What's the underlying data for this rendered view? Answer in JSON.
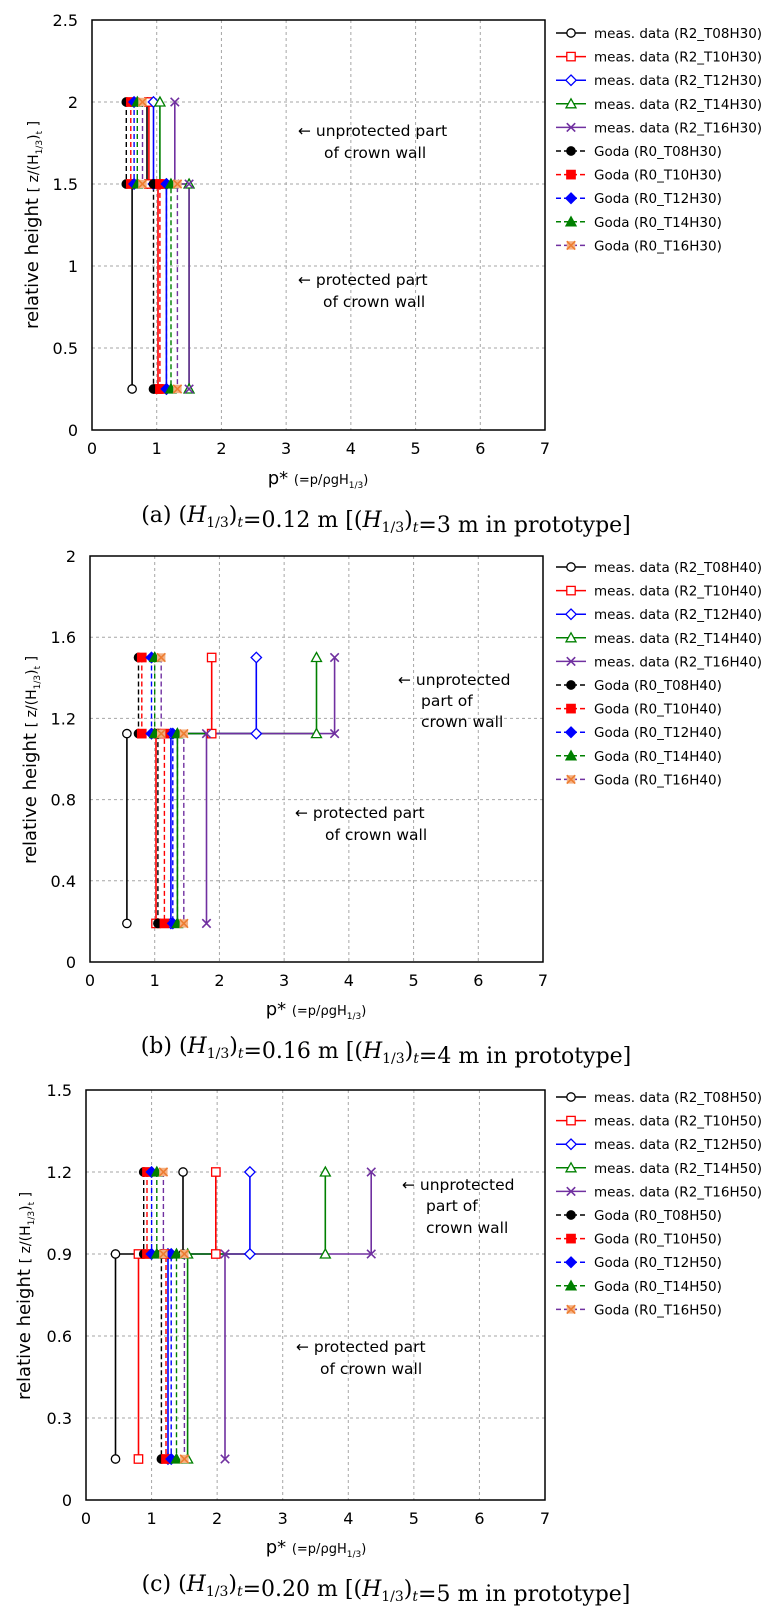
{
  "chart_data": [
    {
      "type": "line",
      "caption": "(a) (H1/3)t=0.12 m [(H1/3)t=3 m in prototype]",
      "xlabel": "p* (=p/ρgH1/3)",
      "ylabel": "relative height [ z/(H1/3)t ]",
      "xlim": [
        0,
        7
      ],
      "ylim": [
        0,
        2.5
      ],
      "xticks": [
        "0",
        "1",
        "2",
        "3",
        "4",
        "5",
        "6",
        "7"
      ],
      "yticks": [
        "0",
        "0.5",
        "1",
        "1.5",
        "2",
        "2.5"
      ],
      "grid": true,
      "legend_position": "right",
      "annotations": [
        "← unprotected part",
        "of crown wall",
        "← protected part",
        "of crown wall"
      ],
      "series": [
        {
          "name": "meas. data (R2_T08H30)",
          "color": "#000000",
          "marker": "circle-open",
          "dash": false,
          "points": [
            [
              0.85,
              2.0
            ],
            [
              0.85,
              1.5
            ],
            [
              0.62,
              1.5
            ],
            [
              0.62,
              0.25
            ]
          ]
        },
        {
          "name": "meas. data (R2_T10H30)",
          "color": "#ff0000",
          "marker": "square-open",
          "dash": false,
          "points": [
            [
              0.88,
              2.0
            ],
            [
              0.88,
              1.5
            ],
            [
              1.02,
              1.5
            ],
            [
              1.02,
              0.25
            ]
          ]
        },
        {
          "name": "meas. data (R2_T12H30)",
          "color": "#0000ff",
          "marker": "diamond-open",
          "dash": false,
          "points": [
            [
              0.95,
              2.0
            ],
            [
              0.95,
              1.5
            ],
            [
              1.15,
              1.5
            ],
            [
              1.15,
              0.25
            ]
          ]
        },
        {
          "name": "meas. data (R2_T14H30)",
          "color": "#008000",
          "marker": "triangle-open",
          "dash": false,
          "points": [
            [
              1.05,
              2.0
            ],
            [
              1.05,
              1.5
            ],
            [
              1.5,
              1.5
            ],
            [
              1.5,
              0.25
            ]
          ]
        },
        {
          "name": "meas. data (R2_T16H30)",
          "color": "#7030a0",
          "marker": "x",
          "dash": false,
          "points": [
            [
              1.28,
              2.0
            ],
            [
              1.28,
              1.5
            ],
            [
              1.5,
              1.5
            ],
            [
              1.5,
              0.25
            ]
          ]
        },
        {
          "name": "Goda (R0_T08H30)",
          "color": "#000000",
          "marker": "circle-filled",
          "dash": true,
          "points": [
            [
              0.53,
              2.0
            ],
            [
              0.53,
              1.5
            ],
            [
              0.95,
              1.5
            ],
            [
              0.95,
              0.25
            ]
          ]
        },
        {
          "name": "Goda (R0_T10H30)",
          "color": "#ff0000",
          "marker": "square-filled",
          "dash": true,
          "points": [
            [
              0.6,
              2.0
            ],
            [
              0.6,
              1.5
            ],
            [
              1.05,
              1.5
            ],
            [
              1.05,
              0.25
            ]
          ]
        },
        {
          "name": "Goda (R0_T12H30)",
          "color": "#0000ff",
          "marker": "diamond-filled",
          "dash": true,
          "points": [
            [
              0.65,
              2.0
            ],
            [
              0.65,
              1.5
            ],
            [
              1.15,
              1.5
            ],
            [
              1.15,
              0.25
            ]
          ]
        },
        {
          "name": "Goda (R0_T14H30)",
          "color": "#008000",
          "marker": "triangle-filled",
          "dash": true,
          "points": [
            [
              0.7,
              2.0
            ],
            [
              0.7,
              1.5
            ],
            [
              1.22,
              1.5
            ],
            [
              1.22,
              0.25
            ]
          ]
        },
        {
          "name": "Goda (R0_T16H30)",
          "color": "#7030a0",
          "marker": "x-orange",
          "dash": true,
          "points": [
            [
              0.78,
              2.0
            ],
            [
              0.78,
              1.5
            ],
            [
              1.32,
              1.5
            ],
            [
              1.32,
              0.25
            ]
          ]
        }
      ]
    },
    {
      "type": "line",
      "caption": "(b) (H1/3)t=0.16 m [(H1/3)t=4 m in prototype]",
      "xlabel": "p* (=p/ρgH1/3)",
      "ylabel": "relative height [ z/(H1/3)t ]",
      "xlim": [
        0,
        7
      ],
      "ylim": [
        0,
        2
      ],
      "xticks": [
        "0",
        "1",
        "2",
        "3",
        "4",
        "5",
        "6",
        "7"
      ],
      "yticks": [
        "0",
        "0.4",
        "0.8",
        "1.2",
        "1.6",
        "2"
      ],
      "grid": true,
      "legend_position": "right",
      "annotations": [
        "← unprotected",
        "part of",
        "crown wall",
        "← protected part",
        "of crown wall"
      ],
      "series": [
        {
          "name": "meas. data (R2_T08H40)",
          "color": "#000000",
          "marker": "circle-open",
          "dash": false,
          "points": [
            [
              0.57,
              1.125
            ],
            [
              0.57,
              0.19
            ]
          ]
        },
        {
          "name": "meas. data (R2_T10H40)",
          "color": "#ff0000",
          "marker": "square-open",
          "dash": false,
          "points": [
            [
              1.88,
              1.5
            ],
            [
              1.88,
              1.125
            ],
            [
              1.02,
              1.125
            ],
            [
              1.02,
              0.19
            ]
          ]
        },
        {
          "name": "meas. data (R2_T12H40)",
          "color": "#0000ff",
          "marker": "diamond-open",
          "dash": false,
          "points": [
            [
              2.57,
              1.5
            ],
            [
              2.57,
              1.125
            ],
            [
              1.25,
              1.125
            ],
            [
              1.25,
              0.19
            ]
          ]
        },
        {
          "name": "meas. data (R2_T14H40)",
          "color": "#008000",
          "marker": "triangle-open",
          "dash": false,
          "points": [
            [
              3.5,
              1.5
            ],
            [
              3.5,
              1.125
            ],
            [
              1.35,
              1.125
            ],
            [
              1.35,
              0.19
            ]
          ]
        },
        {
          "name": "meas. data (R2_T16H40)",
          "color": "#7030a0",
          "marker": "x",
          "dash": false,
          "points": [
            [
              3.78,
              1.5
            ],
            [
              3.78,
              1.125
            ],
            [
              1.8,
              1.125
            ],
            [
              1.8,
              0.19
            ]
          ]
        },
        {
          "name": "Goda (R0_T08H40)",
          "color": "#000000",
          "marker": "circle-filled",
          "dash": true,
          "points": [
            [
              0.75,
              1.5
            ],
            [
              0.75,
              1.125
            ],
            [
              1.05,
              1.125
            ],
            [
              1.05,
              0.19
            ]
          ]
        },
        {
          "name": "Goda (R0_T10H40)",
          "color": "#ff0000",
          "marker": "square-filled",
          "dash": true,
          "points": [
            [
              0.8,
              1.5
            ],
            [
              0.8,
              1.125
            ],
            [
              1.15,
              1.125
            ],
            [
              1.15,
              0.19
            ]
          ]
        },
        {
          "name": "Goda (R0_T12H40)",
          "color": "#0000ff",
          "marker": "diamond-filled",
          "dash": true,
          "points": [
            [
              0.95,
              1.5
            ],
            [
              0.95,
              1.125
            ],
            [
              1.28,
              1.125
            ],
            [
              1.28,
              0.19
            ]
          ]
        },
        {
          "name": "Goda (R0_T14H40)",
          "color": "#008000",
          "marker": "triangle-filled",
          "dash": true,
          "points": [
            [
              1.0,
              1.5
            ],
            [
              1.0,
              1.125
            ],
            [
              1.35,
              1.125
            ],
            [
              1.35,
              0.19
            ]
          ]
        },
        {
          "name": "Goda (R0_T16H40)",
          "color": "#7030a0",
          "marker": "x-orange",
          "dash": true,
          "points": [
            [
              1.1,
              1.5
            ],
            [
              1.1,
              1.125
            ],
            [
              1.45,
              1.125
            ],
            [
              1.45,
              0.19
            ]
          ]
        }
      ]
    },
    {
      "type": "line",
      "caption": "(c) (H1/3)t=0.20 m [(H1/3)t=5 m in prototype]",
      "xlabel": "p* (=p/ρgH1/3)",
      "ylabel": "relative height [ z/(H1/3)t ]",
      "xlim": [
        0,
        7
      ],
      "ylim": [
        0,
        1.5
      ],
      "xticks": [
        "0",
        "1",
        "2",
        "3",
        "4",
        "5",
        "6",
        "7"
      ],
      "yticks": [
        "0",
        "0.3",
        "0.6",
        "0.9",
        "1.2",
        "1.5"
      ],
      "grid": true,
      "legend_position": "right",
      "annotations": [
        "← unprotected",
        "part of",
        "crown wall",
        "← protected part",
        "of crown wall"
      ],
      "series": [
        {
          "name": "meas. data (R2_T08H50)",
          "color": "#000000",
          "marker": "circle-open",
          "dash": false,
          "points": [
            [
              1.48,
              1.2
            ],
            [
              1.48,
              0.9
            ],
            [
              0.45,
              0.9
            ],
            [
              0.45,
              0.15
            ]
          ]
        },
        {
          "name": "meas. data (R2_T10H50)",
          "color": "#ff0000",
          "marker": "square-open",
          "dash": false,
          "points": [
            [
              1.98,
              1.2
            ],
            [
              1.98,
              0.9
            ],
            [
              0.8,
              0.9
            ],
            [
              0.8,
              0.15
            ]
          ]
        },
        {
          "name": "meas. data (R2_T12H50)",
          "color": "#0000ff",
          "marker": "diamond-open",
          "dash": false,
          "points": [
            [
              2.5,
              1.2
            ],
            [
              2.5,
              0.9
            ],
            [
              1.25,
              0.9
            ],
            [
              1.25,
              0.15
            ]
          ]
        },
        {
          "name": "meas. data (R2_T14H50)",
          "color": "#008000",
          "marker": "triangle-open",
          "dash": false,
          "points": [
            [
              3.65,
              1.2
            ],
            [
              3.65,
              0.9
            ],
            [
              1.55,
              0.9
            ],
            [
              1.55,
              0.15
            ]
          ]
        },
        {
          "name": "meas. data (R2_T16H50)",
          "color": "#7030a0",
          "marker": "x",
          "dash": false,
          "points": [
            [
              4.35,
              1.2
            ],
            [
              4.35,
              0.9
            ],
            [
              2.12,
              0.9
            ],
            [
              2.12,
              0.15
            ]
          ]
        },
        {
          "name": "Goda (R0_T08H50)",
          "color": "#000000",
          "marker": "circle-filled",
          "dash": true,
          "points": [
            [
              0.88,
              1.2
            ],
            [
              0.88,
              0.9
            ],
            [
              1.15,
              0.9
            ],
            [
              1.15,
              0.15
            ]
          ]
        },
        {
          "name": "Goda (R0_T10H50)",
          "color": "#ff0000",
          "marker": "square-filled",
          "dash": true,
          "points": [
            [
              0.93,
              1.2
            ],
            [
              0.93,
              0.9
            ],
            [
              1.22,
              0.9
            ],
            [
              1.22,
              0.15
            ]
          ]
        },
        {
          "name": "Goda (R0_T12H50)",
          "color": "#0000ff",
          "marker": "diamond-filled",
          "dash": true,
          "points": [
            [
              1.0,
              1.2
            ],
            [
              1.0,
              0.9
            ],
            [
              1.3,
              0.9
            ],
            [
              1.3,
              0.15
            ]
          ]
        },
        {
          "name": "Goda (R0_T14H50)",
          "color": "#008000",
          "marker": "triangle-filled",
          "dash": true,
          "points": [
            [
              1.08,
              1.2
            ],
            [
              1.08,
              0.9
            ],
            [
              1.38,
              0.9
            ],
            [
              1.38,
              0.15
            ]
          ]
        },
        {
          "name": "Goda (R0_T16H50)",
          "color": "#7030a0",
          "marker": "x-orange",
          "dash": true,
          "points": [
            [
              1.18,
              1.2
            ],
            [
              1.18,
              0.9
            ],
            [
              1.5,
              0.9
            ],
            [
              1.5,
              0.15
            ]
          ]
        }
      ]
    }
  ]
}
